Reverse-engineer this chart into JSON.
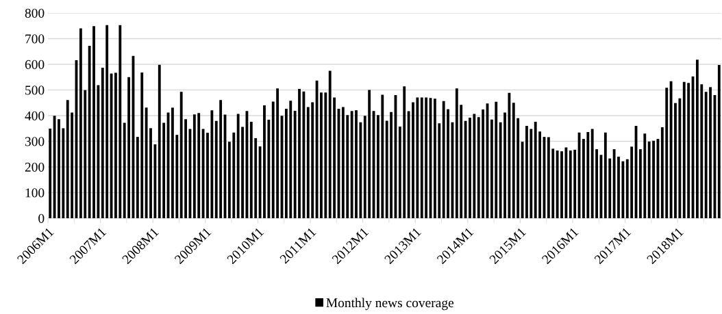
{
  "chart_data": {
    "type": "bar",
    "categories": [
      "2006M1",
      null,
      null,
      null,
      null,
      null,
      null,
      null,
      null,
      null,
      null,
      null,
      "2007M1",
      null,
      null,
      null,
      null,
      null,
      null,
      null,
      null,
      null,
      null,
      null,
      "2008M1",
      null,
      null,
      null,
      null,
      null,
      null,
      null,
      null,
      null,
      null,
      null,
      "2009M1",
      null,
      null,
      null,
      null,
      null,
      null,
      null,
      null,
      null,
      null,
      null,
      "2010M1",
      null,
      null,
      null,
      null,
      null,
      null,
      null,
      null,
      null,
      null,
      null,
      "2011M1",
      null,
      null,
      null,
      null,
      null,
      null,
      null,
      null,
      null,
      null,
      null,
      "2012M1",
      null,
      null,
      null,
      null,
      null,
      null,
      null,
      null,
      null,
      null,
      null,
      "2013M1",
      null,
      null,
      null,
      null,
      null,
      null,
      null,
      null,
      null,
      null,
      null,
      "2014M1",
      null,
      null,
      null,
      null,
      null,
      null,
      null,
      null,
      null,
      null,
      null,
      "2015M1",
      null,
      null,
      null,
      null,
      null,
      null,
      null,
      null,
      null,
      null,
      null,
      "2016M1",
      null,
      null,
      null,
      null,
      null,
      null,
      null,
      null,
      null,
      null,
      null,
      "2017M1",
      null,
      null,
      null,
      null,
      null,
      null,
      null,
      null,
      null,
      null,
      null,
      "2018M1",
      null,
      null,
      null,
      null,
      null,
      null,
      null,
      null,
      null
    ],
    "series": [
      {
        "name": "Monthly news coverage",
        "color": "#000000",
        "values": [
          349,
          399,
          386,
          351,
          461,
          412,
          616,
          740,
          499,
          672,
          749,
          519,
          587,
          753,
          564,
          567,
          753,
          372,
          550,
          633,
          317,
          568,
          431,
          351,
          288,
          598,
          372,
          412,
          431,
          325,
          493,
          386,
          348,
          405,
          410,
          348,
          333,
          421,
          379,
          461,
          404,
          298,
          334,
          407,
          356,
          418,
          376,
          312,
          280,
          440,
          384,
          455,
          506,
          399,
          427,
          458,
          419,
          504,
          494,
          433,
          452,
          537,
          490,
          490,
          575,
          471,
          427,
          433,
          402,
          418,
          421,
          374,
          399,
          500,
          418,
          402,
          481,
          380,
          414,
          480,
          357,
          514,
          417,
          452,
          471,
          471,
          471,
          469,
          466,
          370,
          457,
          425,
          374,
          506,
          442,
          379,
          392,
          407,
          394,
          424,
          447,
          385,
          454,
          374,
          412,
          489,
          450,
          390,
          298,
          360,
          348,
          376,
          338,
          317,
          316,
          271,
          264,
          261,
          276,
          264,
          267,
          334,
          309,
          336,
          348,
          269,
          247,
          334,
          233,
          269,
          240,
          222,
          230,
          279,
          360,
          269,
          330,
          299,
          302,
          309,
          355,
          509,
          534,
          449,
          467,
          531,
          527,
          553,
          618,
          522,
          493,
          511,
          480,
          597
        ]
      }
    ],
    "ylim": [
      0,
      800
    ],
    "yticks": [
      0,
      100,
      200,
      300,
      400,
      500,
      600,
      700,
      800
    ],
    "grid": "y",
    "legend": "bottom"
  }
}
